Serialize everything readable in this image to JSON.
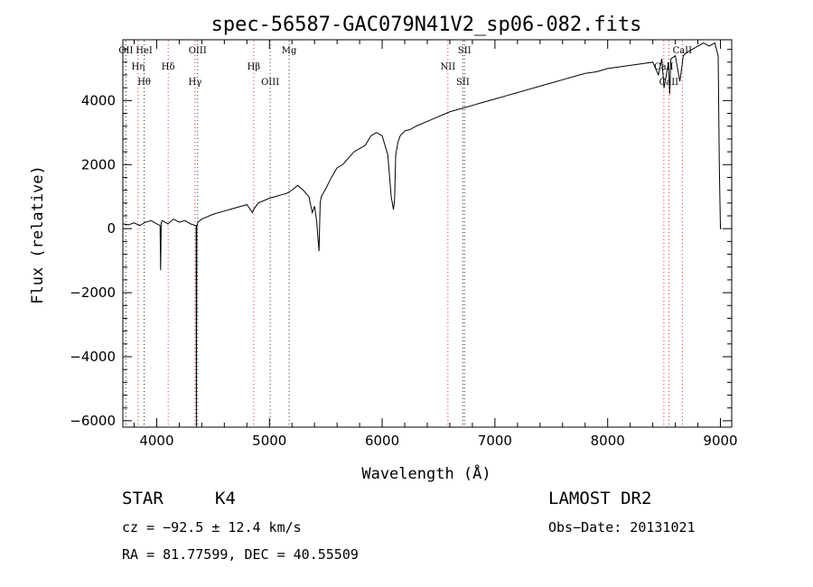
{
  "chart_data": {
    "type": "line",
    "title": "spec-56587-GAC079N41V2_sp06-082.fits",
    "xlabel": "Wavelength (Å)",
    "ylabel": "Flux (relative)",
    "xlim": [
      3700,
      9100
    ],
    "ylim": [
      -6200,
      5900
    ],
    "xticks": [
      4000,
      5000,
      6000,
      7000,
      8000,
      9000
    ],
    "yticks": [
      -6000,
      -4000,
      -2000,
      0,
      2000,
      4000
    ],
    "grid": false,
    "series": [
      {
        "x": [
          3700,
          3750,
          3800,
          3850,
          3900,
          3950,
          4000,
          4030,
          4035,
          4040,
          4050,
          4100,
          4150,
          4200,
          4250,
          4300,
          4340,
          4350,
          4352,
          4356,
          4365,
          4400,
          4500,
          4600,
          4700,
          4800,
          4850,
          4860,
          4900,
          5000,
          5050,
          5100,
          5150,
          5200,
          5250,
          5300,
          5350,
          5380,
          5400,
          5420,
          5430,
          5440,
          5450,
          5460,
          5500,
          5550,
          5600,
          5650,
          5700,
          5750,
          5800,
          5850,
          5900,
          5950,
          6000,
          6050,
          6080,
          6100,
          6110,
          6120,
          6140,
          6160,
          6200,
          6250,
          6300,
          6400,
          6500,
          6600,
          6700,
          6800,
          6900,
          7000,
          7100,
          7200,
          7300,
          7400,
          7500,
          7600,
          7700,
          7800,
          7900,
          8000,
          8100,
          8200,
          8300,
          8400,
          8450,
          8480,
          8500,
          8540,
          8550,
          8560,
          8600,
          8640,
          8660,
          8670,
          8700,
          8750,
          8800,
          8850,
          8900,
          8950,
          8980,
          8990,
          9000,
          9005,
          9010
        ],
        "y": [
          150,
          120,
          180,
          100,
          200,
          250,
          150,
          100,
          -1300,
          180,
          250,
          150,
          300,
          200,
          250,
          150,
          100,
          100,
          -6200,
          50,
          200,
          300,
          450,
          550,
          650,
          750,
          500,
          600,
          800,
          950,
          1000,
          1050,
          1100,
          1200,
          1350,
          1200,
          1000,
          500,
          700,
          200,
          -300,
          -700,
          800,
          1000,
          1250,
          1600,
          1900,
          2000,
          2200,
          2400,
          2500,
          2600,
          2900,
          3000,
          2900,
          2300,
          1000,
          600,
          900,
          2300,
          2700,
          2900,
          3050,
          3100,
          3200,
          3350,
          3500,
          3650,
          3750,
          3850,
          3950,
          4050,
          4150,
          4250,
          4350,
          4450,
          4550,
          4650,
          4750,
          4850,
          4900,
          5000,
          5050,
          5100,
          5150,
          5200,
          4800,
          5300,
          4400,
          5200,
          4200,
          5300,
          5400,
          4600,
          5100,
          5400,
          5500,
          5600,
          5700,
          5800,
          5700,
          5800,
          5400,
          2000,
          0,
          0,
          0
        ]
      }
    ],
    "lines": [
      {
        "x": 3727,
        "top": "OII",
        "red": false
      },
      {
        "x": 3835,
        "top": "Hη",
        "red": true
      },
      {
        "x": 3889,
        "top": "Hθ",
        "red": true
      },
      {
        "x": 3889,
        "top": "HeI",
        "red": false
      },
      {
        "x": 4102,
        "top": "Hδ",
        "red": true
      },
      {
        "x": 4340,
        "top": "Hγ",
        "red": true
      },
      {
        "x": 4363,
        "top": "OIII",
        "red": false
      },
      {
        "x": 4861,
        "top": "Hβ",
        "red": true
      },
      {
        "x": 5007,
        "top": "OIII",
        "red": false
      },
      {
        "x": 5175,
        "top": "Mg",
        "red": false
      },
      {
        "x": 6583,
        "top": "NII",
        "red": true
      },
      {
        "x": 6716,
        "top": "SII",
        "red": false
      },
      {
        "x": 6731,
        "top": "SII",
        "red": false
      },
      {
        "x": 8498,
        "top": "CaII",
        "red": true
      },
      {
        "x": 8542,
        "top": "CaII",
        "red": true
      },
      {
        "x": 8662,
        "top": "CaII",
        "red": true
      }
    ]
  },
  "footer": {
    "class": "STAR",
    "subclass": "K4",
    "survey": "LAMOST DR2",
    "cz": "cz = −92.5 ± 12.4 km/s",
    "obs_date": "Obs−Date: 20131021",
    "coords": "RA =  81.77599, DEC =  40.55509"
  }
}
